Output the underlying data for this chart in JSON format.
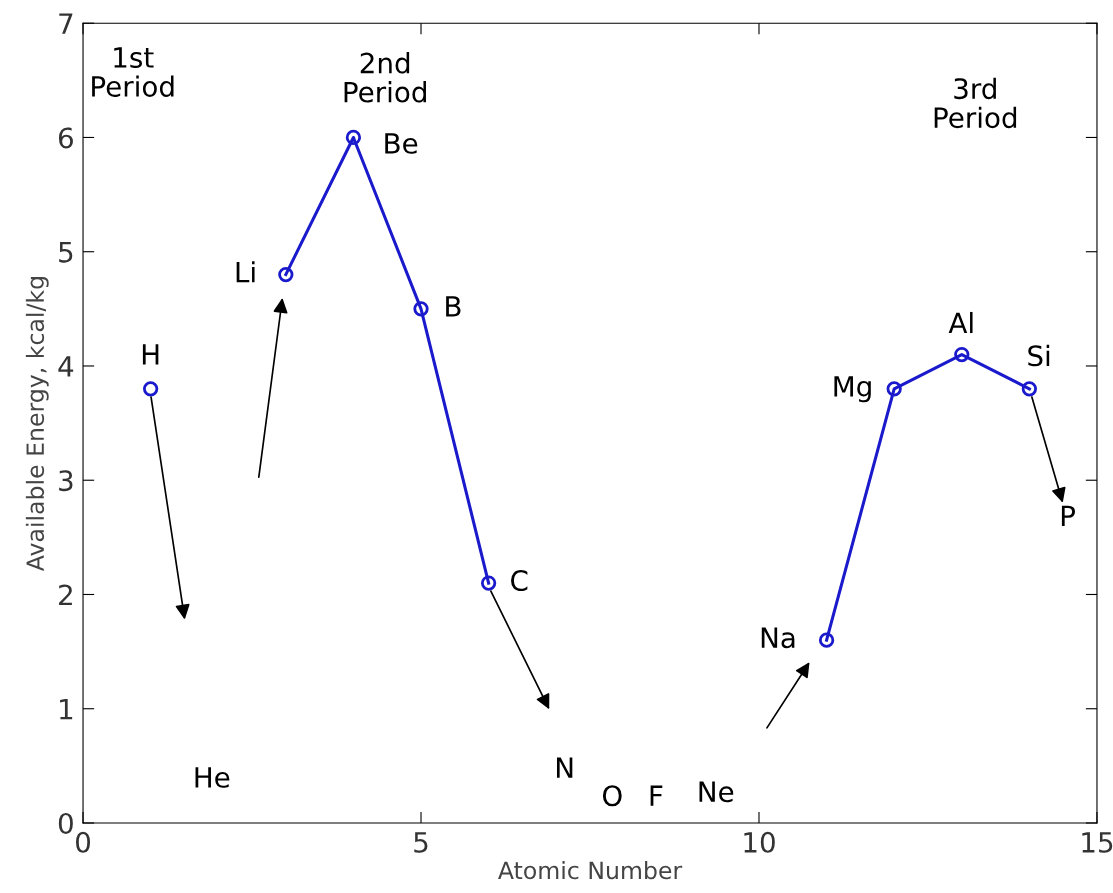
{
  "chart_data": {
    "type": "line",
    "xlabel": "Atomic Number",
    "ylabel": "Available Energy, kcal/kg",
    "xlim": [
      0,
      15
    ],
    "ylim": [
      0,
      7
    ],
    "xticks": [
      0,
      5,
      10,
      15
    ],
    "yticks": [
      0,
      1,
      2,
      3,
      4,
      5,
      6,
      7
    ],
    "grid": false,
    "marker": "circle",
    "line_style": "solid",
    "series": [
      {
        "color": "#1a1acc",
        "x": [
          1,
          2,
          3,
          4,
          5,
          6,
          7,
          8,
          9,
          10,
          11,
          12,
          13,
          14
        ],
        "values": [
          3.8,
          null,
          4.8,
          6.0,
          4.5,
          2.1,
          null,
          null,
          null,
          null,
          1.6,
          3.8,
          4.1,
          3.8
        ]
      }
    ],
    "annotations": [
      "1st\nPeriod",
      "2nd\nPeriod",
      "3rd\nPeriod",
      {
        "text": "H",
        "x": 1,
        "y": 3.8
      },
      "He",
      {
        "text": "Li",
        "x": 3,
        "y": 4.8
      },
      {
        "text": "Be",
        "x": 4,
        "y": 6.0
      },
      {
        "text": "B",
        "x": 5,
        "y": 4.5
      },
      {
        "text": "C",
        "x": 6,
        "y": 2.1
      },
      "N",
      "O",
      "F",
      "Ne",
      {
        "text": "Na",
        "x": 11,
        "y": 1.6
      },
      {
        "text": "Mg",
        "x": 12,
        "y": 3.8
      },
      {
        "text": "Al",
        "x": 13,
        "y": 4.1
      },
      {
        "text": "Si",
        "x": 14,
        "y": 3.8
      },
      "P"
    ]
  }
}
